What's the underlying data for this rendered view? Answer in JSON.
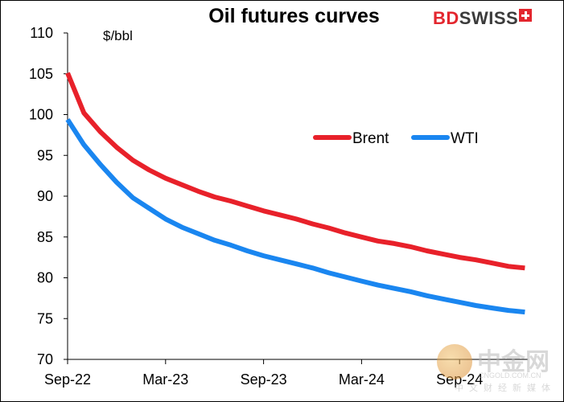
{
  "chart_data": {
    "type": "line",
    "title": "Oil futures curves",
    "ylabel": "$/bbl",
    "xlabel": "",
    "ylim": [
      70,
      110
    ],
    "yticks": [
      70,
      75,
      80,
      85,
      90,
      95,
      100,
      105,
      110
    ],
    "x_tick_labels": [
      "Sep-22",
      "Mar-23",
      "Sep-23",
      "Mar-24",
      "Sep-24"
    ],
    "x_start": "Sep-22",
    "grid": false,
    "legend_position": "center-right",
    "series": [
      {
        "name": "Brent",
        "color": "#e8212a",
        "values": [
          105.1,
          100.2,
          97.9,
          96.0,
          94.4,
          93.2,
          92.2,
          91.4,
          90.6,
          89.9,
          89.4,
          88.8,
          88.2,
          87.7,
          87.2,
          86.6,
          86.1,
          85.5,
          85.0,
          84.5,
          84.2,
          83.8,
          83.3,
          82.9,
          82.5,
          82.2,
          81.8,
          81.4,
          81.2
        ]
      },
      {
        "name": "WTI",
        "color": "#1a86f0",
        "values": [
          99.4,
          96.3,
          93.9,
          91.7,
          89.8,
          88.5,
          87.2,
          86.2,
          85.4,
          84.6,
          84.0,
          83.3,
          82.7,
          82.2,
          81.7,
          81.2,
          80.6,
          80.1,
          79.6,
          79.1,
          78.7,
          78.3,
          77.8,
          77.4,
          77.0,
          76.6,
          76.3,
          76.0,
          75.8
        ]
      }
    ]
  },
  "logo": {
    "bd": "BD",
    "swiss": "SWISS"
  },
  "watermark": {
    "text": "中金网",
    "domain": "CNGOLD.COM.CN",
    "sub": "中文财经新媒体"
  }
}
